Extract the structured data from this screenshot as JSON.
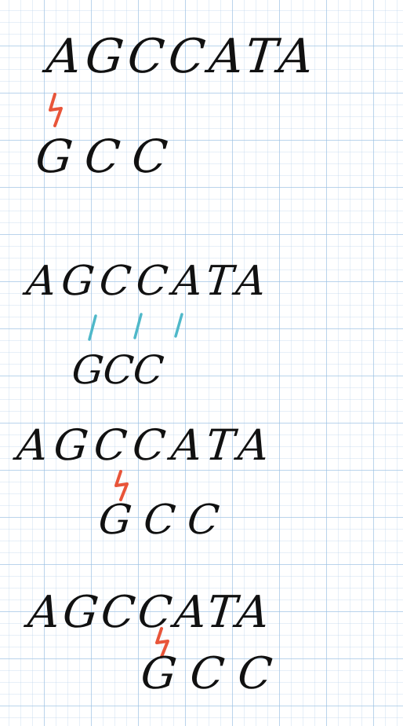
{
  "panels": [
    {
      "reference": "AGCCATA",
      "query": "GCC",
      "marker": "mismatch"
    },
    {
      "reference": "AGCCATA",
      "query": "GCC",
      "marker": "match"
    },
    {
      "reference": "AGCCATA",
      "query": "GCC",
      "marker": "mismatch"
    },
    {
      "reference": "AGCCATA",
      "query": "GCC",
      "marker": "mismatch"
    }
  ],
  "colors": {
    "ink": "#111111",
    "mismatch": "#e8553a",
    "match": "#4fb8c9",
    "grid": "#96bee1"
  }
}
